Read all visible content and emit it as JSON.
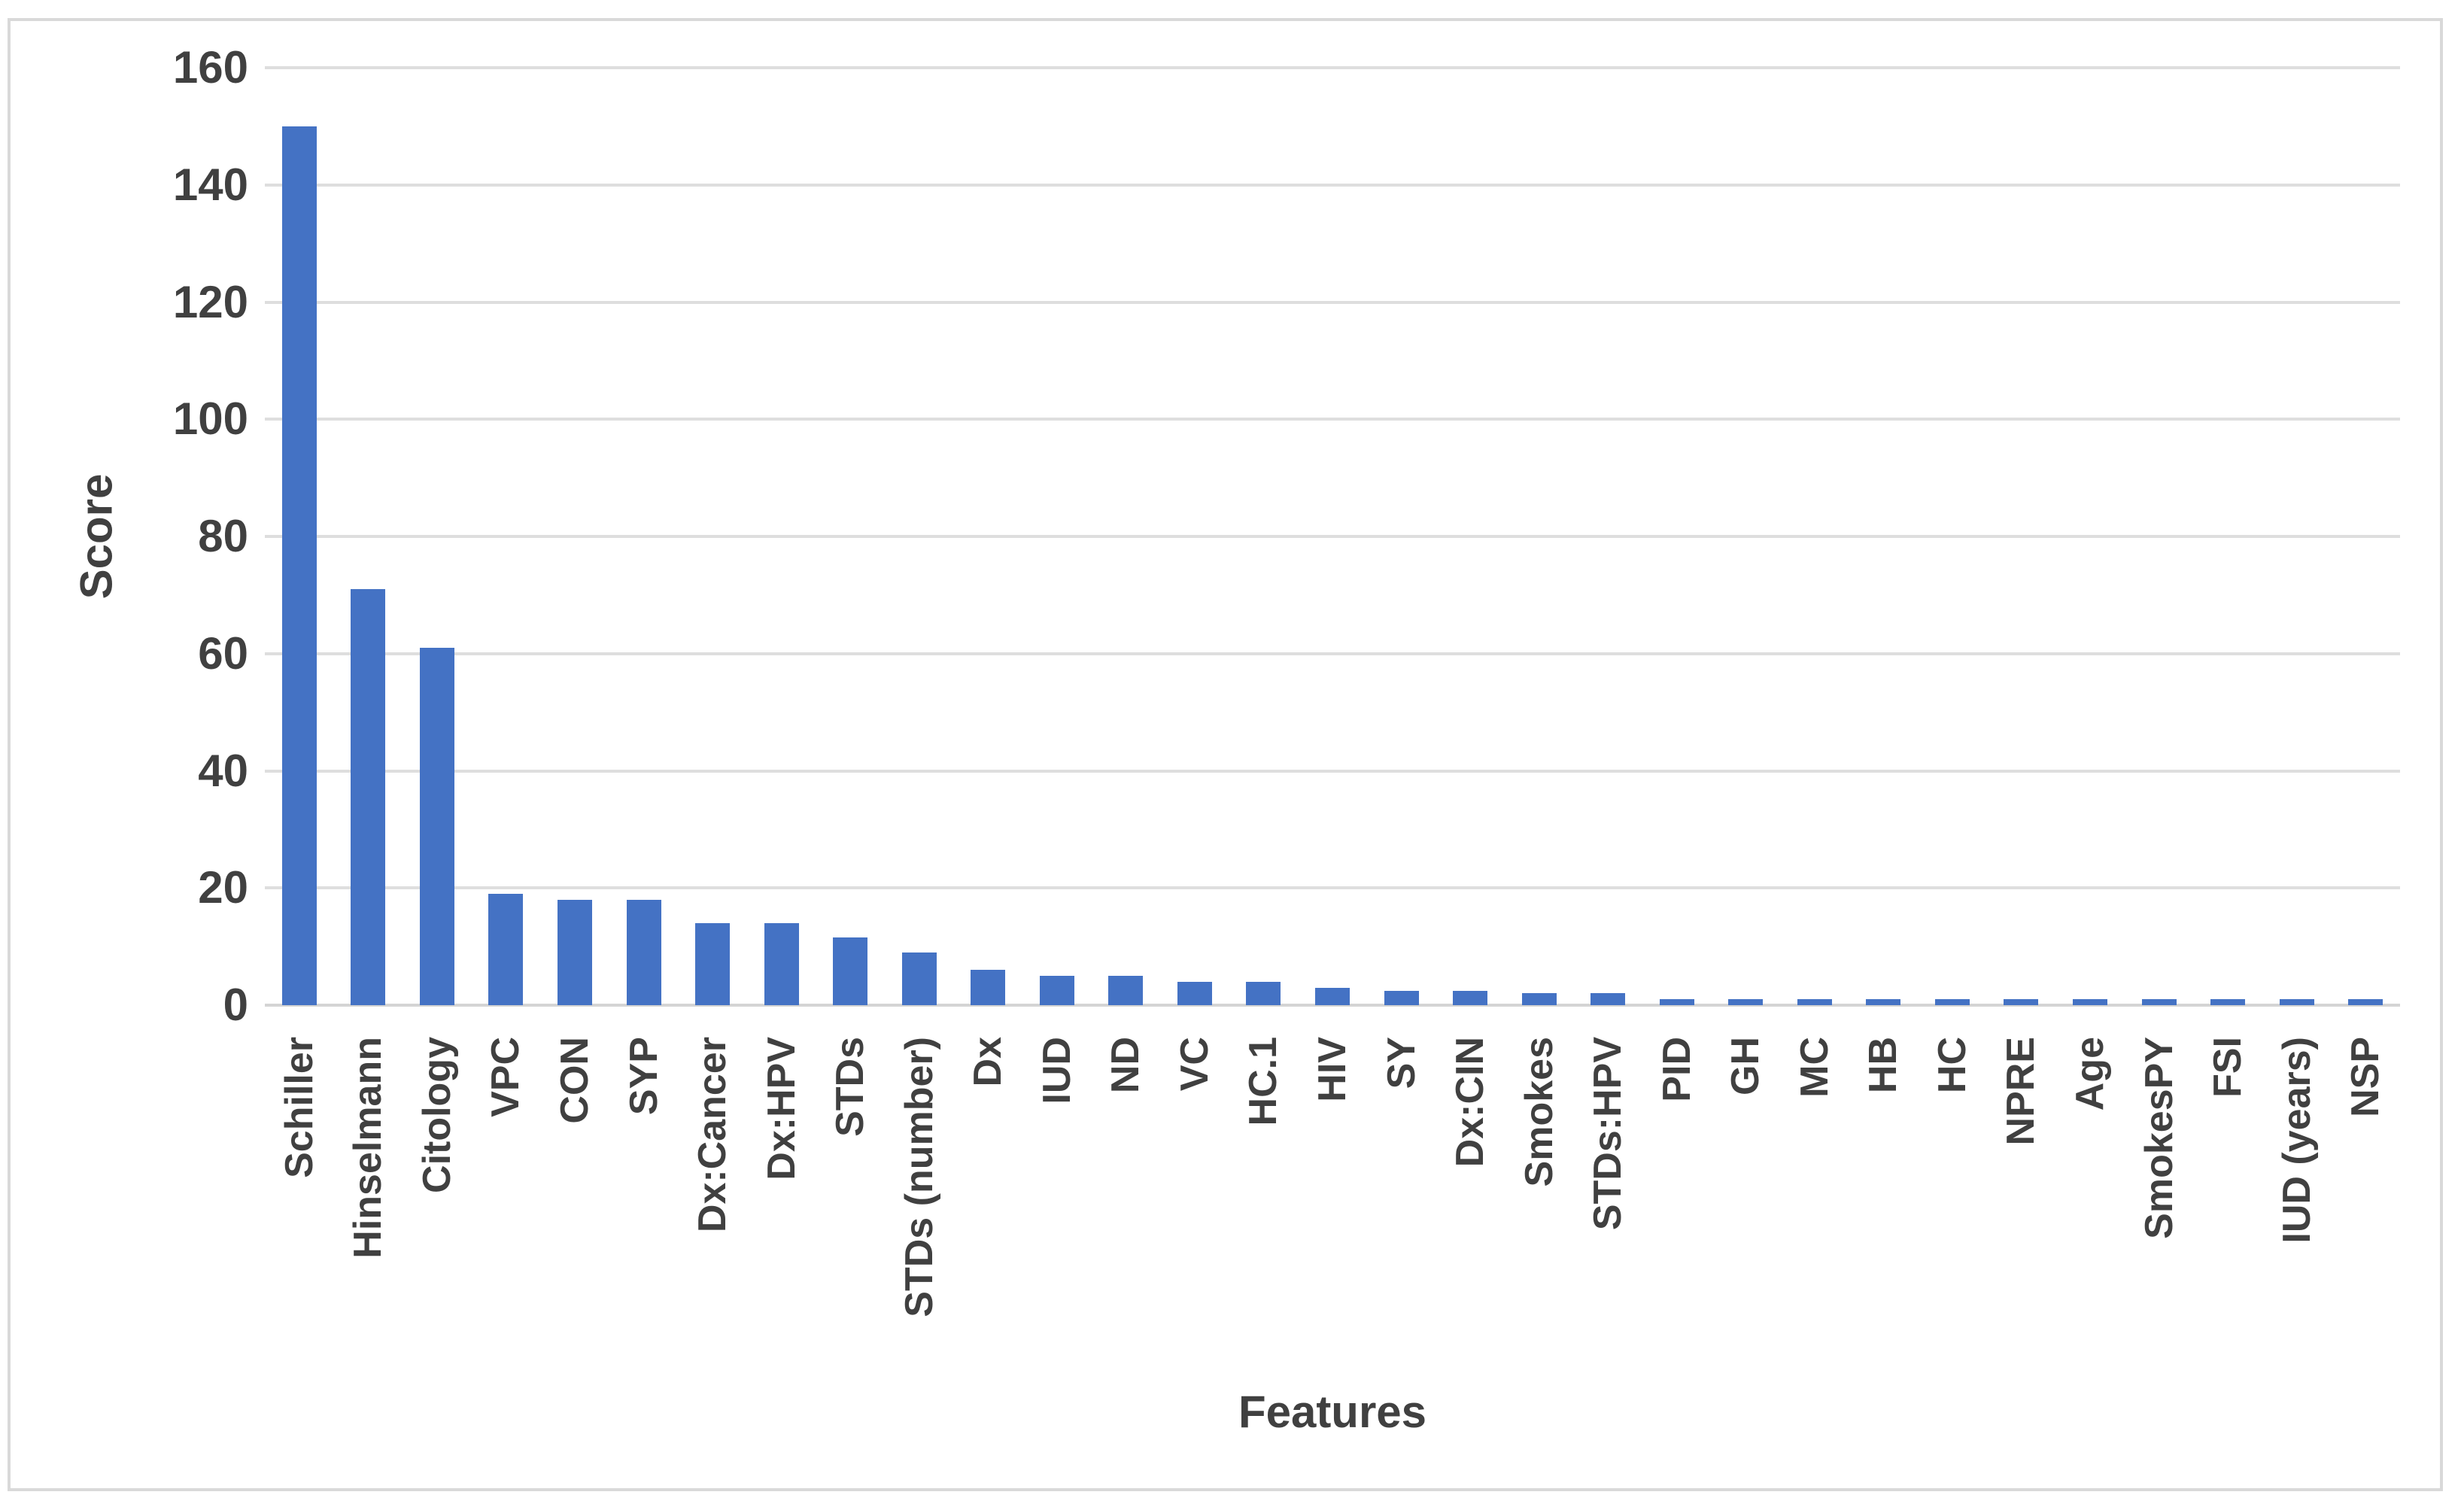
{
  "chart_data": {
    "type": "bar",
    "title": "",
    "xlabel": "Features",
    "ylabel": "Score",
    "ylim": [
      0,
      160
    ],
    "y_ticks": [
      0,
      20,
      40,
      60,
      80,
      100,
      120,
      140,
      160
    ],
    "grid": true,
    "legend": null,
    "categories": [
      "Schiller",
      "Hinselmann",
      "Citology",
      "VPC",
      "CON",
      "SYP",
      "Dx:Cancer",
      "Dx:HPV",
      "STDs",
      "STDs (number)",
      "Dx",
      "IUD",
      "ND",
      "VC",
      "HC.1",
      "HIV",
      "SY",
      "Dx:CIN",
      "Smokes",
      "STDs:HPV",
      "PID",
      "GH",
      "MC",
      "HB",
      "HC",
      "NPRE",
      "Age",
      "SmokesPY",
      "FSI",
      "IUD (years)",
      "NSP"
    ],
    "values": [
      150,
      71,
      61,
      19,
      18,
      18,
      14,
      14,
      11.5,
      9,
      6,
      5,
      5,
      4,
      4,
      3,
      2.5,
      2.5,
      2,
      2,
      1,
      1,
      1,
      1,
      1,
      1,
      1,
      1,
      1,
      1,
      1
    ]
  },
  "colors": {
    "bar": "#4472c4",
    "gridline": "#dedede",
    "axis_line": "#d4d4d4",
    "border": "#d9d9d9",
    "text": "#404040"
  }
}
